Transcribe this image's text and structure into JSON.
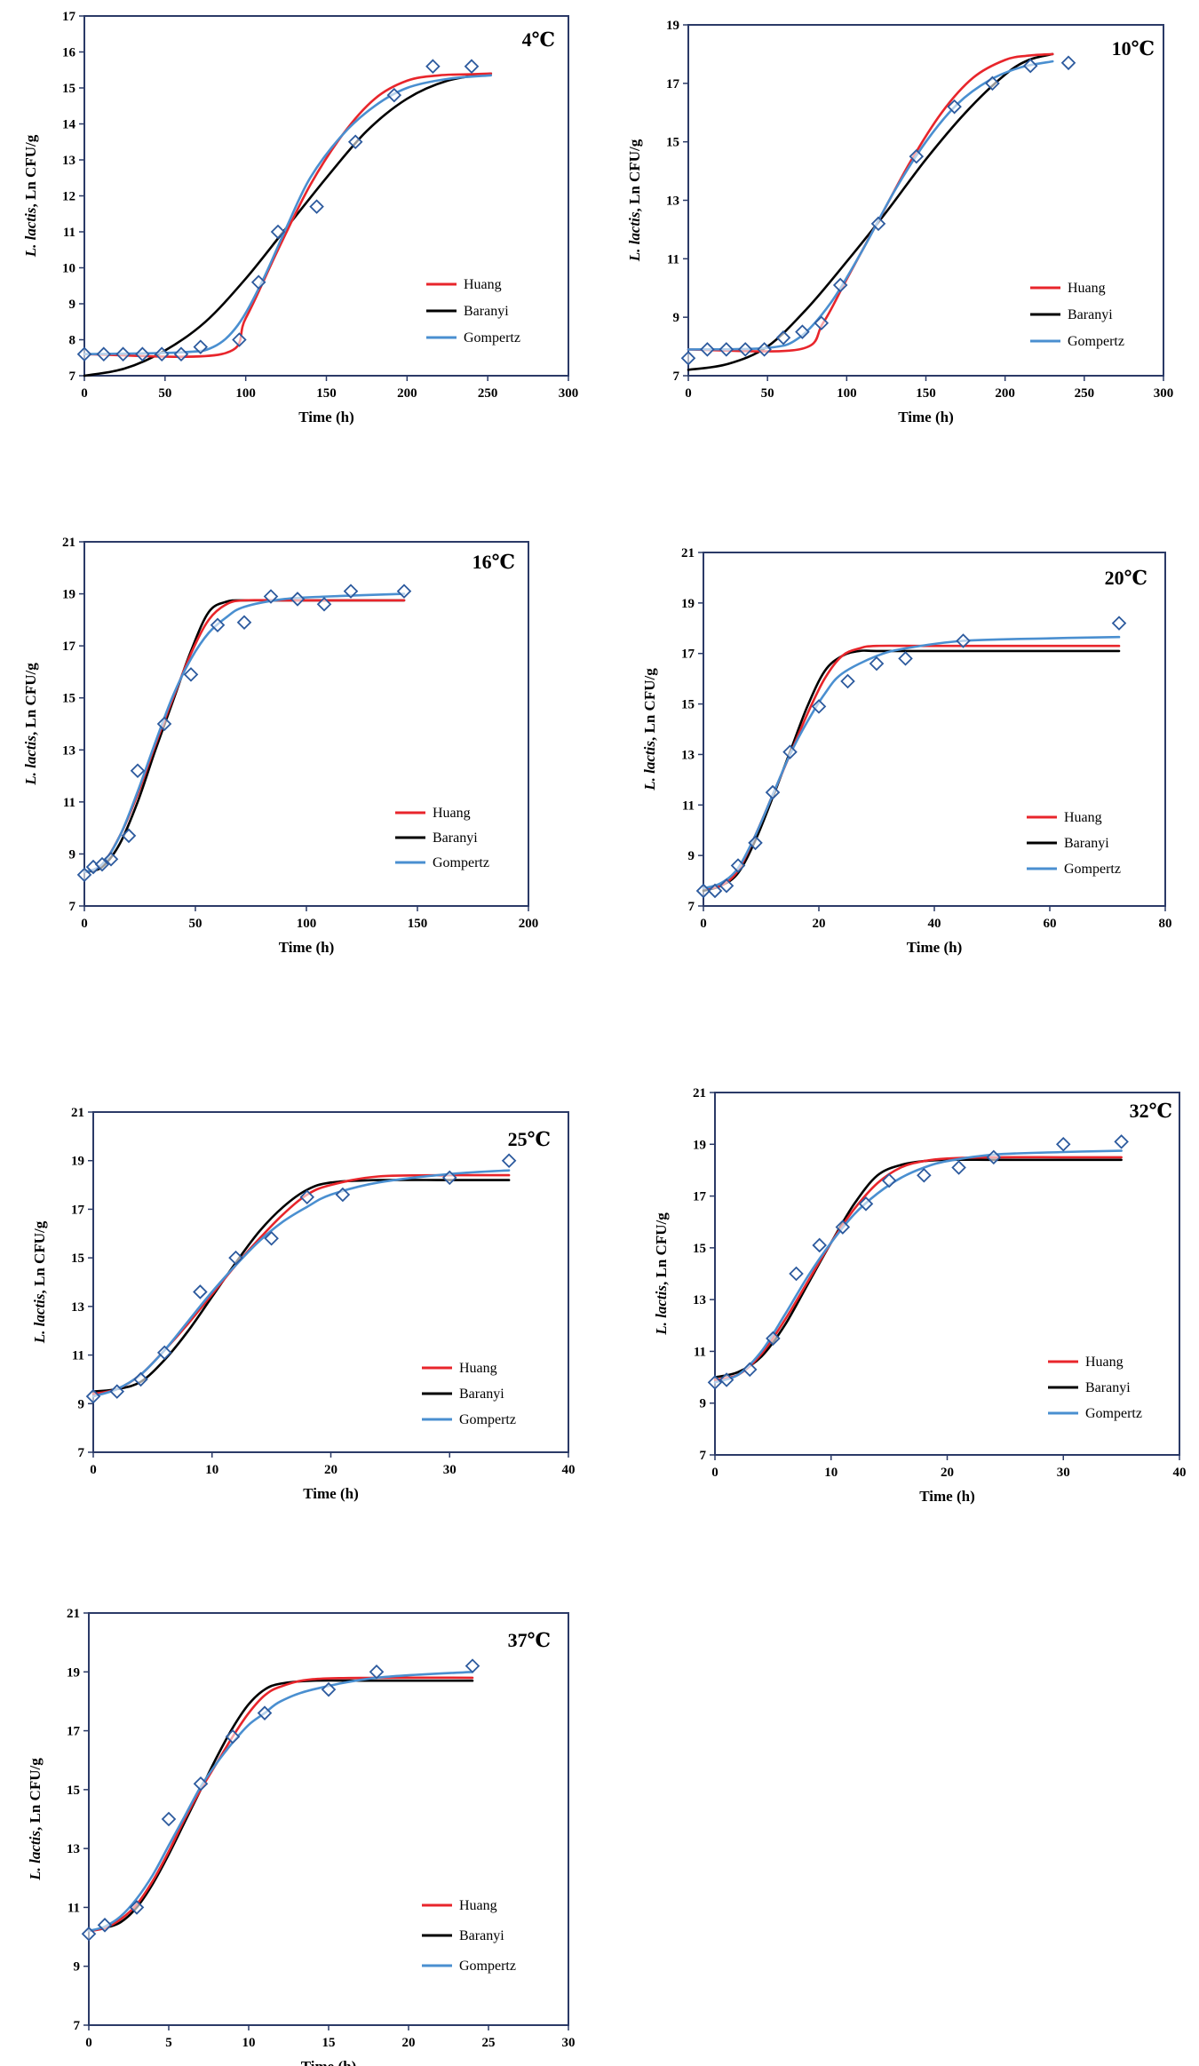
{
  "figure": {
    "models": [
      {
        "name": "Huang",
        "color": "#e8252b"
      },
      {
        "name": "Baranyi",
        "color": "#000000"
      },
      {
        "name": "Gompertz",
        "color": "#4a8fd0"
      }
    ],
    "marker_color": "#2c5a9e",
    "ylabel_italic": "L. lactis",
    "ylabel_rest": ", Ln CFU/g",
    "xlabel": "Time (h)"
  },
  "chart_data": [
    {
      "type": "line",
      "title": "4℃",
      "xlabel": "Time (h)",
      "ylabel": "L. lactis, Ln CFU/g",
      "xlim": [
        0,
        300
      ],
      "ylim": [
        7,
        17
      ],
      "xticks": [
        0,
        50,
        100,
        150,
        200,
        250,
        300
      ],
      "yticks": [
        7,
        8,
        9,
        10,
        11,
        12,
        13,
        14,
        15,
        16,
        17
      ],
      "observed": {
        "x": [
          0,
          12,
          24,
          36,
          48,
          60,
          72,
          96,
          108,
          120,
          144,
          168,
          192,
          216,
          240
        ],
        "y": [
          7.6,
          7.6,
          7.6,
          7.6,
          7.6,
          7.6,
          7.8,
          8.0,
          9.6,
          11.0,
          11.7,
          13.5,
          14.8,
          15.6,
          15.6
        ]
      },
      "series": [
        {
          "name": "Huang",
          "x": [
            0,
            85,
            100,
            120,
            140,
            160,
            180,
            200,
            220,
            240,
            252
          ],
          "y": [
            7.6,
            7.6,
            8.6,
            10.5,
            12.3,
            13.7,
            14.7,
            15.2,
            15.35,
            15.38,
            15.4
          ]
        },
        {
          "name": "Baranyi",
          "x": [
            0,
            25,
            50,
            75,
            100,
            125,
            150,
            175,
            200,
            225,
            252
          ],
          "y": [
            7.0,
            7.2,
            7.7,
            8.5,
            9.7,
            11.1,
            12.5,
            13.8,
            14.7,
            15.2,
            15.4
          ]
        },
        {
          "name": "Gompertz",
          "x": [
            0,
            60,
            80,
            95,
            110,
            125,
            140,
            160,
            180,
            200,
            225,
            252
          ],
          "y": [
            7.6,
            7.65,
            7.8,
            8.4,
            9.6,
            11.1,
            12.5,
            13.7,
            14.5,
            15.0,
            15.25,
            15.35
          ]
        }
      ]
    },
    {
      "type": "line",
      "title": "10℃",
      "xlabel": "Time (h)",
      "ylabel": "L. lactis, Ln CFU/g",
      "xlim": [
        0,
        300
      ],
      "ylim": [
        7,
        19
      ],
      "xticks": [
        0,
        50,
        100,
        150,
        200,
        250,
        300
      ],
      "yticks": [
        7,
        9,
        11,
        13,
        15,
        17,
        19
      ],
      "observed": {
        "x": [
          0,
          12,
          24,
          36,
          48,
          60,
          72,
          84,
          96,
          120,
          144,
          168,
          192,
          216,
          240
        ],
        "y": [
          7.6,
          7.9,
          7.9,
          7.9,
          7.9,
          8.3,
          8.5,
          8.8,
          10.1,
          12.2,
          14.5,
          16.2,
          17.0,
          17.6,
          17.7
        ]
      },
      "series": [
        {
          "name": "Huang",
          "x": [
            0,
            70,
            85,
            100,
            120,
            140,
            160,
            180,
            200,
            215,
            230
          ],
          "y": [
            7.9,
            7.9,
            8.8,
            10.3,
            12.3,
            14.3,
            16.0,
            17.2,
            17.8,
            17.95,
            18.0
          ]
        },
        {
          "name": "Baranyi",
          "x": [
            0,
            25,
            50,
            75,
            100,
            125,
            150,
            175,
            200,
            215,
            230
          ],
          "y": [
            7.2,
            7.4,
            8.0,
            9.3,
            10.9,
            12.6,
            14.4,
            16.0,
            17.3,
            17.8,
            18.0
          ]
        },
        {
          "name": "Gompertz",
          "x": [
            0,
            50,
            70,
            90,
            110,
            130,
            150,
            170,
            190,
            210,
            230
          ],
          "y": [
            7.9,
            7.95,
            8.3,
            9.5,
            11.3,
            13.3,
            15.0,
            16.3,
            17.1,
            17.55,
            17.75
          ]
        }
      ]
    },
    {
      "type": "line",
      "title": "16℃",
      "xlabel": "Time (h)",
      "ylabel": "L. lactis, Ln CFU/g",
      "xlim": [
        0,
        200
      ],
      "ylim": [
        7,
        21
      ],
      "xticks": [
        0,
        50,
        100,
        150,
        200
      ],
      "yticks": [
        7,
        9,
        11,
        13,
        15,
        17,
        19,
        21
      ],
      "observed": {
        "x": [
          0,
          4,
          8,
          12,
          20,
          24,
          36,
          48,
          60,
          72,
          84,
          96,
          108,
          120,
          144
        ],
        "y": [
          8.2,
          8.5,
          8.6,
          8.8,
          9.7,
          12.2,
          14.0,
          15.9,
          17.8,
          17.9,
          18.9,
          18.8,
          18.6,
          19.1,
          19.1
        ]
      },
      "series": [
        {
          "name": "Huang",
          "x": [
            0,
            8,
            16,
            24,
            32,
            40,
            48,
            56,
            64,
            72,
            90,
            144
          ],
          "y": [
            8.3,
            8.6,
            9.7,
            11.3,
            13.2,
            15.0,
            16.7,
            18.0,
            18.6,
            18.75,
            18.75,
            18.75
          ]
        },
        {
          "name": "Baranyi",
          "x": [
            0,
            8,
            16,
            24,
            32,
            40,
            48,
            56,
            64,
            72,
            90,
            144
          ],
          "y": [
            8.3,
            8.5,
            9.4,
            11.0,
            13.0,
            14.9,
            16.8,
            18.3,
            18.7,
            18.75,
            18.75,
            18.75
          ]
        },
        {
          "name": "Gompertz",
          "x": [
            0,
            8,
            16,
            24,
            32,
            40,
            48,
            56,
            64,
            72,
            90,
            110,
            144
          ],
          "y": [
            8.3,
            8.6,
            9.7,
            11.4,
            13.3,
            15.1,
            16.5,
            17.5,
            18.1,
            18.5,
            18.8,
            18.9,
            19.0
          ]
        }
      ]
    },
    {
      "type": "line",
      "title": "20℃",
      "xlabel": "Time (h)",
      "ylabel": "L. lactis, Ln CFU/g",
      "xlim": [
        0,
        80
      ],
      "ylim": [
        7,
        21
      ],
      "xticks": [
        0,
        20,
        40,
        60,
        80
      ],
      "yticks": [
        7,
        9,
        11,
        13,
        15,
        17,
        19,
        21
      ],
      "observed": {
        "x": [
          0,
          2,
          4,
          6,
          9,
          12,
          15,
          20,
          25,
          30,
          35,
          45,
          72
        ],
        "y": [
          7.6,
          7.6,
          7.8,
          8.6,
          9.5,
          11.5,
          13.1,
          14.9,
          15.9,
          16.6,
          16.8,
          17.5,
          18.2
        ]
      },
      "series": [
        {
          "name": "Huang",
          "x": [
            0,
            3,
            6,
            9,
            12,
            15,
            18,
            21,
            24,
            27,
            30,
            40,
            72
          ],
          "y": [
            7.7,
            7.8,
            8.4,
            9.8,
            11.4,
            13.0,
            14.6,
            16.0,
            16.9,
            17.2,
            17.3,
            17.3,
            17.3
          ]
        },
        {
          "name": "Baranyi",
          "x": [
            0,
            3,
            6,
            9,
            12,
            15,
            18,
            21,
            24,
            27,
            30,
            40,
            72
          ],
          "y": [
            7.6,
            7.8,
            8.3,
            9.6,
            11.3,
            13.1,
            14.9,
            16.3,
            16.9,
            17.1,
            17.1,
            17.1,
            17.1
          ]
        },
        {
          "name": "Gompertz",
          "x": [
            0,
            3,
            6,
            9,
            12,
            15,
            18,
            21,
            24,
            30,
            35,
            45,
            60,
            72
          ],
          "y": [
            7.7,
            7.9,
            8.5,
            9.8,
            11.4,
            13.0,
            14.3,
            15.4,
            16.2,
            16.9,
            17.2,
            17.5,
            17.6,
            17.65
          ]
        }
      ]
    },
    {
      "type": "line",
      "title": "25℃",
      "xlabel": "Time (h)",
      "ylabel": "L. lactis, Ln CFU/g",
      "xlim": [
        0,
        40
      ],
      "ylim": [
        7,
        21
      ],
      "xticks": [
        0,
        10,
        20,
        30,
        40
      ],
      "yticks": [
        7,
        9,
        11,
        13,
        15,
        17,
        19,
        21
      ],
      "observed": {
        "x": [
          0,
          2,
          4,
          6,
          9,
          12,
          15,
          18,
          21,
          30,
          35
        ],
        "y": [
          9.3,
          9.5,
          10.0,
          11.1,
          13.6,
          15.0,
          15.8,
          17.5,
          17.6,
          18.3,
          19.0
        ]
      },
      "series": [
        {
          "name": "Huang",
          "x": [
            0,
            2,
            4,
            6,
            8,
            10,
            12,
            14,
            16,
            18,
            20,
            24,
            30,
            35
          ],
          "y": [
            9.4,
            9.6,
            10.2,
            11.2,
            12.3,
            13.5,
            14.7,
            15.8,
            16.8,
            17.6,
            18.0,
            18.35,
            18.4,
            18.4
          ]
        },
        {
          "name": "Baranyi",
          "x": [
            0,
            2,
            4,
            6,
            8,
            10,
            12,
            14,
            16,
            18,
            20,
            24,
            30,
            35
          ],
          "y": [
            9.5,
            9.6,
            9.9,
            10.8,
            12.0,
            13.4,
            14.8,
            16.1,
            17.1,
            17.8,
            18.1,
            18.2,
            18.2,
            18.2
          ]
        },
        {
          "name": "Gompertz",
          "x": [
            0,
            2,
            4,
            6,
            8,
            10,
            12,
            14,
            16,
            18,
            20,
            24,
            30,
            35
          ],
          "y": [
            9.3,
            9.6,
            10.2,
            11.2,
            12.4,
            13.6,
            14.7,
            15.7,
            16.5,
            17.1,
            17.6,
            18.1,
            18.45,
            18.6
          ]
        }
      ]
    },
    {
      "type": "line",
      "title": "32℃",
      "xlabel": "Time (h)",
      "ylabel": "L. lactis, Ln CFU/g",
      "xlim": [
        0,
        40
      ],
      "ylim": [
        7,
        21
      ],
      "xticks": [
        0,
        10,
        20,
        30,
        40
      ],
      "yticks": [
        7,
        9,
        11,
        13,
        15,
        17,
        19,
        21
      ],
      "observed": {
        "x": [
          0,
          1,
          3,
          5,
          7,
          9,
          11,
          13,
          15,
          18,
          21,
          24,
          30,
          35
        ],
        "y": [
          9.8,
          9.9,
          10.3,
          11.5,
          14.0,
          15.1,
          15.8,
          16.7,
          17.6,
          17.8,
          18.1,
          18.5,
          19.0,
          19.1
        ]
      },
      "series": [
        {
          "name": "Huang",
          "x": [
            0,
            2,
            4,
            6,
            8,
            10,
            12,
            14,
            16,
            18,
            20,
            24,
            30,
            35
          ],
          "y": [
            9.9,
            10.1,
            10.9,
            12.2,
            13.7,
            15.2,
            16.5,
            17.5,
            18.1,
            18.35,
            18.45,
            18.5,
            18.5,
            18.5
          ]
        },
        {
          "name": "Baranyi",
          "x": [
            0,
            2,
            4,
            6,
            8,
            10,
            12,
            14,
            16,
            18,
            20,
            24,
            30,
            35
          ],
          "y": [
            10.0,
            10.2,
            10.8,
            12.0,
            13.6,
            15.2,
            16.7,
            17.8,
            18.2,
            18.35,
            18.4,
            18.4,
            18.4,
            18.4
          ]
        },
        {
          "name": "Gompertz",
          "x": [
            0,
            2,
            4,
            6,
            8,
            10,
            12,
            14,
            16,
            18,
            20,
            24,
            30,
            35
          ],
          "y": [
            9.8,
            10.1,
            11.0,
            12.4,
            13.9,
            15.2,
            16.3,
            17.1,
            17.7,
            18.1,
            18.35,
            18.6,
            18.7,
            18.75
          ]
        }
      ]
    },
    {
      "type": "line",
      "title": "37℃",
      "xlabel": "Time (h)",
      "ylabel": "L. lactis, Ln CFU/g",
      "xlim": [
        0,
        30
      ],
      "ylim": [
        7,
        21
      ],
      "xticks": [
        0,
        5,
        10,
        15,
        20,
        25,
        30
      ],
      "yticks": [
        7,
        9,
        11,
        13,
        15,
        17,
        19,
        21
      ],
      "observed": {
        "x": [
          0,
          1,
          3,
          5,
          7,
          9,
          11,
          15,
          18,
          24
        ],
        "y": [
          10.1,
          10.4,
          11.0,
          14.0,
          15.2,
          16.8,
          17.6,
          18.4,
          19.0,
          19.2
        ]
      },
      "series": [
        {
          "name": "Huang",
          "x": [
            0,
            1,
            2,
            3,
            4,
            5,
            6,
            7,
            8,
            9,
            10,
            11,
            12,
            14,
            18,
            24
          ],
          "y": [
            10.2,
            10.3,
            10.6,
            11.1,
            11.9,
            12.9,
            14.0,
            15.0,
            15.9,
            16.8,
            17.6,
            18.2,
            18.5,
            18.75,
            18.8,
            18.8
          ]
        },
        {
          "name": "Baranyi",
          "x": [
            0,
            1,
            2,
            3,
            4,
            5,
            6,
            7,
            8,
            9,
            10,
            11,
            12,
            14,
            18,
            24
          ],
          "y": [
            10.2,
            10.3,
            10.5,
            11.0,
            11.8,
            12.8,
            13.9,
            15.0,
            16.1,
            17.1,
            17.9,
            18.4,
            18.6,
            18.7,
            18.7,
            18.7
          ]
        },
        {
          "name": "Gompertz",
          "x": [
            0,
            1,
            2,
            3,
            4,
            5,
            6,
            7,
            8,
            9,
            10,
            11,
            12,
            14,
            18,
            24
          ],
          "y": [
            10.2,
            10.35,
            10.7,
            11.3,
            12.1,
            13.1,
            14.1,
            15.1,
            15.9,
            16.6,
            17.2,
            17.6,
            18.0,
            18.4,
            18.8,
            19.0
          ]
        }
      ]
    }
  ]
}
